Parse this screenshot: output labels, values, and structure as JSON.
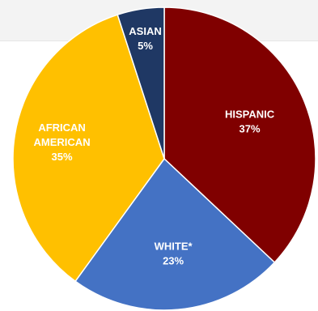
{
  "chart_data": {
    "type": "pie",
    "slices": [
      {
        "label_lines": [
          "HISPANIC"
        ],
        "value_label": "37%",
        "value": 37,
        "color": "#800000"
      },
      {
        "label_lines": [
          "WHITE*"
        ],
        "value_label": "23%",
        "value": 23,
        "color": "#4472c4"
      },
      {
        "label_lines": [
          "AFRICAN",
          "AMERICAN"
        ],
        "value_label": "35%",
        "value": 35,
        "color": "#ffc000"
      },
      {
        "label_lines": [
          "ASIAN"
        ],
        "value_label": "5%",
        "value": 5,
        "color": "#1f3864"
      }
    ],
    "start": "12 o'clock",
    "direction": "clockwise",
    "slice_border_color": "#ffffff"
  }
}
